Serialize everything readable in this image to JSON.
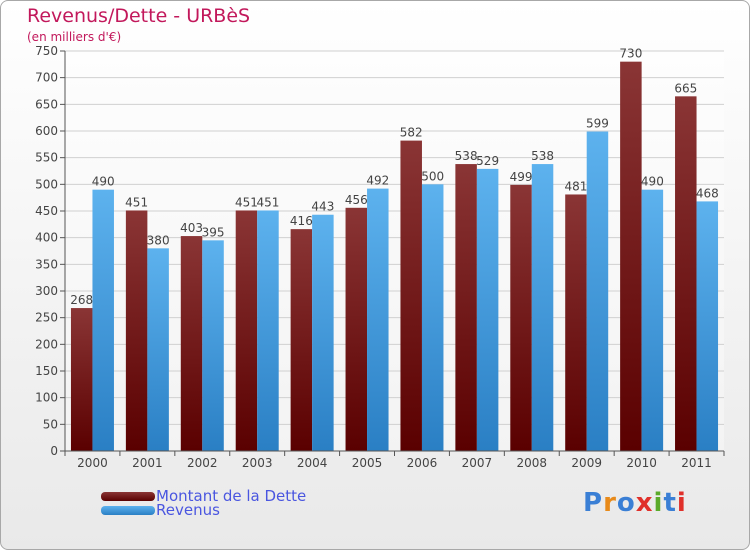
{
  "title": "Revenus/Dette - URBèS",
  "subtitle": "(en milliers d'€)",
  "logo_text": "Proxiti",
  "colors": {
    "dette": "#7a1010",
    "revenus": "#4aa3e3",
    "title": "#c2185b",
    "legend_text": "#4a56e0",
    "grid": "#d0d0d0"
  },
  "chart_data": {
    "type": "bar",
    "title": "Revenus/Dette - URBèS",
    "subtitle": "(en milliers d'€)",
    "categories": [
      "2000",
      "2001",
      "2002",
      "2003",
      "2004",
      "2005",
      "2006",
      "2007",
      "2008",
      "2009",
      "2010",
      "2011"
    ],
    "series": [
      {
        "name": "Montant de la Dette",
        "values": [
          268,
          451,
          403,
          451,
          416,
          456,
          582,
          538,
          499,
          481,
          730,
          665
        ]
      },
      {
        "name": "Revenus",
        "values": [
          490,
          380,
          395,
          451,
          443,
          492,
          500,
          529,
          538,
          599,
          490,
          468
        ]
      }
    ],
    "ylim": [
      0,
      750
    ],
    "yticks": [
      0,
      50,
      100,
      150,
      200,
      250,
      300,
      350,
      400,
      450,
      500,
      550,
      600,
      650,
      700,
      750
    ],
    "grid": true,
    "legend_position": "bottom-left"
  }
}
